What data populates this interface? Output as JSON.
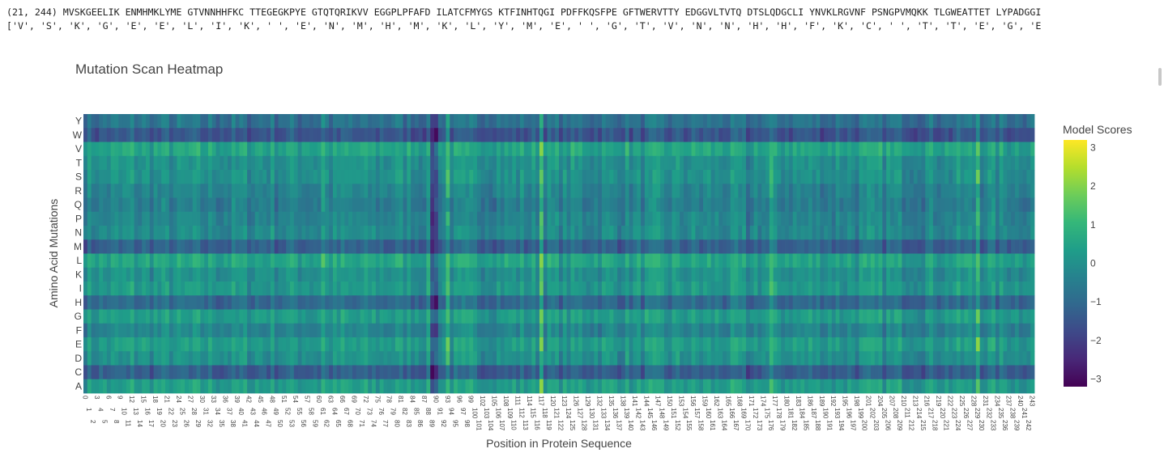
{
  "output": {
    "line1": "(21, 244) MVSKGEELIK ENMHMKLYME GTVNNHHFKC TTEGEGKPYE GTQTQRIKVV EGGPLPFAFD ILATCFMYGS KTFINHTQGI PDFFKQSFPE GFTWERVTTY EDGGVLTVTQ DTSLQDGCLI YNVKLRGVNF PSNGPVMQKK TLGWEATTET LYPADGGI",
    "line2": "['V', 'S', 'K', 'G', 'E', 'E', 'L', 'I', 'K', ' ', 'E', 'N', 'M', 'H', 'M', 'K', 'L', 'Y', 'M', 'E', ' ', 'G', 'T', 'V', 'N', 'N', 'H', 'H', 'F', 'K', 'C', ' ', 'T', 'T', 'E', 'G', 'E"
  },
  "chart_data": {
    "type": "heatmap",
    "title": "Mutation Scan Heatmap",
    "xlabel": "Position in Protein Sequence",
    "ylabel": "Amino Acid Mutations",
    "y_categories": [
      "Y",
      "W",
      "V",
      "T",
      "S",
      "R",
      "Q",
      "P",
      "N",
      "M",
      "L",
      "K",
      "I",
      "H",
      "G",
      "F",
      "E",
      "D",
      "C",
      "A"
    ],
    "x_range": [
      0,
      243
    ],
    "row_means": [
      -0.8,
      -1.5,
      0.5,
      0.0,
      0.0,
      -0.3,
      -0.5,
      -0.3,
      -0.2,
      -1.2,
      0.5,
      0.0,
      0.2,
      -1.0,
      0.3,
      -0.3,
      0.3,
      0.0,
      -1.3,
      0.3
    ],
    "column_hotspots": [
      {
        "x": 89,
        "effect": -1.6
      },
      {
        "x": 90,
        "effect": -1.4
      },
      {
        "x": 93,
        "effect": 1.2
      },
      {
        "x": 117,
        "effect": 1.3
      },
      {
        "x": 61,
        "effect": 0.6
      },
      {
        "x": 176,
        "effect": 0.9
      },
      {
        "x": 229,
        "effect": 1.2
      },
      {
        "x": 170,
        "effect": -0.6
      },
      {
        "x": 12,
        "effect": 0.5
      }
    ],
    "colorscale": "Viridis",
    "zlim": [
      -3.2,
      3.2
    ],
    "colorbar": {
      "title": "Model Scores",
      "ticks": [
        3,
        2,
        1,
        0,
        -1,
        -2,
        -3
      ],
      "tick_labels": [
        "3",
        "2",
        "1",
        "0",
        "−1",
        "−2",
        "−3"
      ]
    }
  }
}
